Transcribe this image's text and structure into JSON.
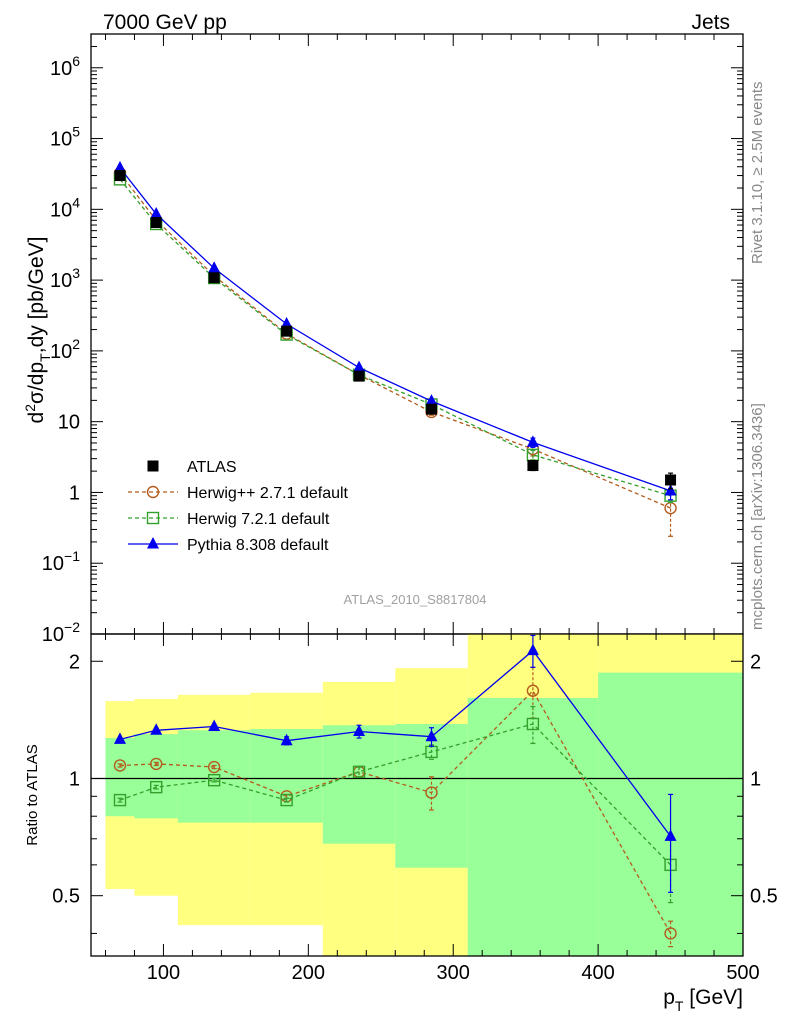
{
  "header": {
    "left": "7000 GeV pp",
    "right": "Jets"
  },
  "side_labels": {
    "rivet": "Rivet 3.1.10, ≥ 2.5M events",
    "mcplots": "mcplots.cern.ch [arXiv:1306.3436]"
  },
  "watermark": "ATLAS_2010_S8817804",
  "chart_data": [
    {
      "type": "line",
      "panel": "main",
      "yscale": "log",
      "ylabel": "d²σ/dp_T,dy [pb/GeV]",
      "xlim": [
        50,
        500
      ],
      "ylim": [
        0.01,
        3000000
      ],
      "ytick_labels": [
        "10⁻²",
        "10⁻¹",
        "1",
        "10",
        "10²",
        "10³",
        "10⁴",
        "10⁵",
        "10⁶"
      ],
      "x": [
        70,
        95,
        135,
        185,
        235,
        285,
        355,
        450
      ],
      "series": [
        {
          "name": "ATLAS",
          "marker": "filled-square",
          "color": "#000000",
          "values": [
            30000,
            6500,
            1080,
            190,
            44,
            15,
            2.4,
            1.5
          ],
          "yerr": [
            0.04,
            0.04,
            0.04,
            0.05,
            0.06,
            0.1,
            0.15,
            0.25
          ]
        },
        {
          "name": "Herwig++ 2.7.1 default",
          "marker": "open-circle",
          "color": "#b35c1e",
          "line": "dashed",
          "values": [
            32500,
            7000,
            1150,
            175,
            46,
            13.7,
            4.1,
            0.6
          ],
          "yerr": [
            0.02,
            0.02,
            0.02,
            0.03,
            0.04,
            0.1,
            0.2,
            0.6
          ]
        },
        {
          "name": "Herwig 7.2.1 default",
          "marker": "open-square",
          "color": "#33a02c",
          "line": "dashed",
          "values": [
            26500,
            6200,
            1070,
            170,
            46,
            17.5,
            3.4,
            0.9
          ],
          "yerr": [
            0.02,
            0.02,
            0.02,
            0.03,
            0.04,
            0.07,
            0.15,
            0.2
          ]
        },
        {
          "name": "Pythia 8.308 default",
          "marker": "filled-triangle",
          "color": "#0000ee",
          "line": "solid",
          "values": [
            38500,
            8600,
            1470,
            240,
            58,
            19.5,
            5.1,
            1.05
          ],
          "yerr": [
            0.02,
            0.02,
            0.02,
            0.03,
            0.05,
            0.06,
            0.15,
            0.25
          ]
        }
      ],
      "legend": "center-left"
    },
    {
      "type": "line",
      "panel": "ratio",
      "ylabel": "Ratio to ATLAS",
      "xlabel": "p_T [GeV]",
      "xlim": [
        50,
        500
      ],
      "ylim": [
        0.35,
        2.35
      ],
      "xticks": [
        100,
        200,
        300,
        400,
        500
      ],
      "yticks": [
        0.5,
        1,
        2
      ],
      "reference_line": 1,
      "bands": {
        "edges": [
          60,
          80,
          110,
          160,
          210,
          260,
          310,
          400,
          500
        ],
        "yellow_lo": [
          0.52,
          0.5,
          0.42,
          0.42,
          0.3,
          0.3,
          0.3,
          0.3
        ],
        "yellow_hi": [
          1.58,
          1.6,
          1.64,
          1.66,
          1.77,
          1.92,
          2.4,
          2.5
        ],
        "green_lo": [
          0.8,
          0.79,
          0.77,
          0.77,
          0.68,
          0.59,
          0.3,
          0.3
        ],
        "green_hi": [
          1.27,
          1.3,
          1.33,
          1.34,
          1.37,
          1.38,
          1.61,
          1.87
        ]
      },
      "x": [
        70,
        95,
        135,
        185,
        235,
        285,
        355,
        450
      ],
      "series": [
        {
          "name": "Herwig++ 2.7.1 default",
          "color": "#b35c1e",
          "line": "dashed",
          "marker": "open-circle",
          "values": [
            1.08,
            1.09,
            1.07,
            0.9,
            1.04,
            0.92,
            1.68,
            0.4
          ],
          "yerr": [
            0.01,
            0.01,
            0.01,
            0.01,
            0.03,
            0.09,
            0.25,
            0.03
          ]
        },
        {
          "name": "Herwig 7.2.1 default",
          "color": "#33a02c",
          "line": "dashed",
          "marker": "open-square",
          "values": [
            0.88,
            0.95,
            0.99,
            0.88,
            1.04,
            1.17,
            1.38,
            0.6
          ],
          "yerr": [
            0.01,
            0.01,
            0.01,
            0.01,
            0.03,
            0.05,
            0.15,
            0.12
          ]
        },
        {
          "name": "Pythia 8.308 default",
          "color": "#0000ee",
          "line": "solid",
          "marker": "filled-triangle",
          "values": [
            1.26,
            1.33,
            1.36,
            1.25,
            1.32,
            1.28,
            2.13,
            0.71
          ],
          "yerr": [
            0.01,
            0.01,
            0.01,
            0.03,
            0.05,
            0.07,
            0.2,
            0.2
          ]
        }
      ]
    }
  ]
}
